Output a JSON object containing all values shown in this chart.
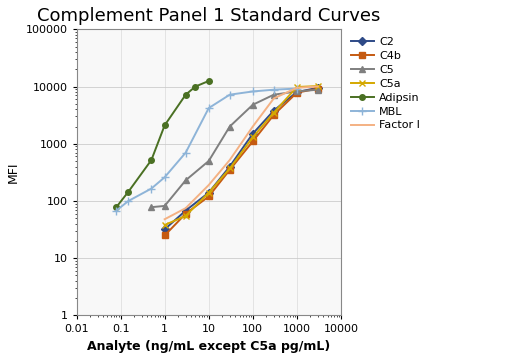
{
  "title": "Complement Panel 1 Standard Curves",
  "xlabel": "Analyte (ng/mL except C5a pg/mL)",
  "ylabel": "MFI",
  "xlim": [
    0.01,
    10000
  ],
  "ylim": [
    1,
    100000
  ],
  "series": {
    "C2": {
      "color": "#2E4A87",
      "marker": "D",
      "markersize": 4,
      "x": [
        1.0,
        3.0,
        10.0,
        30.0,
        100.0,
        300.0,
        1000.0,
        3000.0
      ],
      "y": [
        32,
        68,
        140,
        400,
        1500,
        3800,
        8000,
        9500
      ]
    },
    "C4b": {
      "color": "#C55A11",
      "marker": "s",
      "markersize": 4,
      "x": [
        1.0,
        3.0,
        10.0,
        30.0,
        100.0,
        300.0,
        1000.0,
        3000.0
      ],
      "y": [
        25,
        60,
        120,
        350,
        1100,
        3200,
        7800,
        9200
      ]
    },
    "C5": {
      "color": "#7F7F7F",
      "marker": "^",
      "markersize": 5,
      "x": [
        0.5,
        1.0,
        3.0,
        10.0,
        30.0,
        100.0,
        300.0,
        1000.0,
        3000.0
      ],
      "y": [
        78,
        82,
        230,
        500,
        2000,
        4800,
        7200,
        8200,
        8800
      ]
    },
    "C5a": {
      "color": "#D4A800",
      "marker": "x",
      "markersize": 5,
      "x": [
        1.0,
        3.0,
        10.0,
        30.0,
        100.0,
        300.0,
        1000.0,
        3000.0
      ],
      "y": [
        38,
        55,
        140,
        370,
        1300,
        3500,
        9800,
        10200
      ]
    },
    "Adipsin": {
      "color": "#4A7023",
      "marker": "o",
      "markersize": 4,
      "x": [
        0.08,
        0.15,
        0.5,
        1.0,
        3.0,
        5.0,
        10.0
      ],
      "y": [
        78,
        145,
        520,
        2100,
        7200,
        10000,
        12500
      ]
    },
    "MBL": {
      "color": "#8EB4D8",
      "marker": "+",
      "markersize": 6,
      "x": [
        0.08,
        0.15,
        0.5,
        1.0,
        3.0,
        10.0,
        30.0,
        100.0,
        300.0,
        1000.0
      ],
      "y": [
        68,
        100,
        165,
        260,
        700,
        4200,
        7200,
        8200,
        8800,
        9200
      ]
    },
    "Factor I": {
      "color": "#F4B183",
      "marker": "None",
      "markersize": 0,
      "x": [
        1.0,
        3.0,
        10.0,
        30.0,
        100.0,
        300.0,
        1000.0,
        3000.0
      ],
      "y": [
        48,
        75,
        190,
        520,
        2000,
        6200,
        9500,
        10000
      ]
    }
  },
  "background_color": "#FFFFFF",
  "plot_bg_color": "#F8F8F8",
  "grid_color": "#C8C8C8",
  "title_fontsize": 13,
  "axis_label_fontsize": 9,
  "tick_fontsize": 8
}
